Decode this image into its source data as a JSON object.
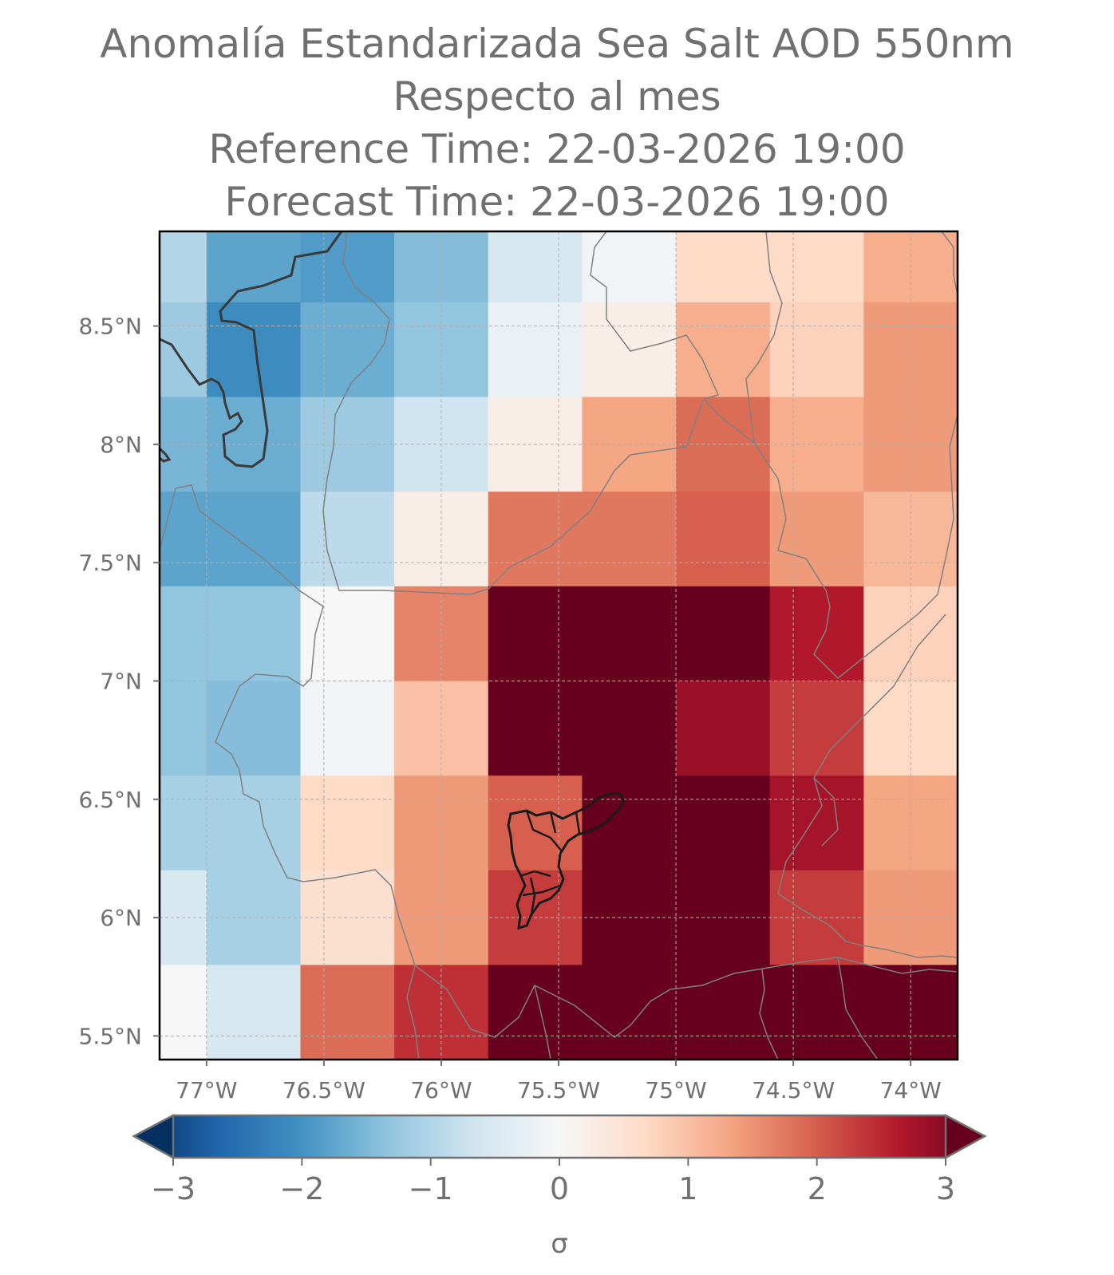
{
  "title_lines": [
    "Anomalía Estandarizada Sea Salt AOD 550nm",
    "Respecto al mes",
    "Reference Time: 22-03-2026 19:00",
    "Forecast Time: 22-03-2026 19:00"
  ],
  "chart_data": {
    "type": "heatmap",
    "title": "Anomalía Estandarizada Sea Salt AOD 550nm / Respecto al mes / Reference Time: 22-03-2026 19:00 / Forecast Time: 22-03-2026 19:00",
    "xlabel": "",
    "ylabel": "",
    "xlim": [
      -77.2,
      -73.8
    ],
    "ylim": [
      5.4,
      8.9
    ],
    "x_ticks": [
      {
        "value": -77.0,
        "label": "77°W"
      },
      {
        "value": -76.5,
        "label": "76.5°W"
      },
      {
        "value": -76.0,
        "label": "76°W"
      },
      {
        "value": -75.5,
        "label": "75.5°W"
      },
      {
        "value": -75.0,
        "label": "75°W"
      },
      {
        "value": -74.5,
        "label": "74.5°W"
      },
      {
        "value": -74.0,
        "label": "74°W"
      }
    ],
    "y_ticks": [
      {
        "value": 5.5,
        "label": "5.5°N"
      },
      {
        "value": 6.0,
        "label": "6°N"
      },
      {
        "value": 6.5,
        "label": "6.5°N"
      },
      {
        "value": 7.0,
        "label": "7°N"
      },
      {
        "value": 7.5,
        "label": "7.5°N"
      },
      {
        "value": 8.0,
        "label": "8°N"
      },
      {
        "value": 8.5,
        "label": "8.5°N"
      }
    ],
    "grid": true,
    "cell_lon_edges": [
      -77.2,
      -77.0,
      -76.6,
      -76.2,
      -75.8,
      -75.4,
      -75.0,
      -74.6,
      -74.2,
      -73.8
    ],
    "cell_lat_edges": [
      8.9,
      8.6,
      8.2,
      7.8,
      7.4,
      7.0,
      6.6,
      6.2,
      5.8,
      5.4
    ],
    "values": [
      [
        -0.9,
        -1.6,
        -1.7,
        -1.3,
        -0.5,
        -0.1,
        0.6,
        0.6,
        1.1
      ],
      [
        -1.1,
        -1.9,
        -1.5,
        -1.2,
        -0.2,
        0.2,
        1.1,
        0.7,
        1.3
      ],
      [
        -1.4,
        -1.5,
        -1.1,
        -0.6,
        0.2,
        1.2,
        1.7,
        1.1,
        1.3
      ],
      [
        -1.6,
        -1.6,
        -0.8,
        0.2,
        1.6,
        1.6,
        1.8,
        1.3,
        1.0
      ],
      [
        -1.2,
        -1.2,
        0.0,
        1.5,
        3.0,
        3.0,
        3.0,
        2.4,
        0.7
      ],
      [
        -1.2,
        -1.3,
        -0.1,
        0.9,
        3.0,
        3.0,
        2.6,
        2.1,
        0.6
      ],
      [
        -1.0,
        -1.0,
        0.6,
        1.3,
        1.8,
        3.0,
        3.0,
        2.5,
        1.2
      ],
      [
        -0.5,
        -1.0,
        0.5,
        1.3,
        2.1,
        3.0,
        3.0,
        2.1,
        1.3
      ],
      [
        0.0,
        -0.5,
        1.7,
        2.2,
        3.0,
        3.0,
        3.0,
        3.0,
        3.0
      ]
    ],
    "colorbar": {
      "colormap": "RdBu_r",
      "min": -3,
      "max": 3,
      "extend": "both",
      "ticks": [
        -3,
        -2,
        -1,
        0,
        1,
        2,
        3
      ],
      "tick_labels": [
        "−3",
        "−2",
        "−1",
        "0",
        "1",
        "2",
        "3"
      ],
      "label": "σ"
    },
    "colors": {
      "coastline": "#3a3a3a",
      "borders": "#808080",
      "highlight_region": "#1a1a1a",
      "gridline": "#b0b0b0"
    }
  }
}
